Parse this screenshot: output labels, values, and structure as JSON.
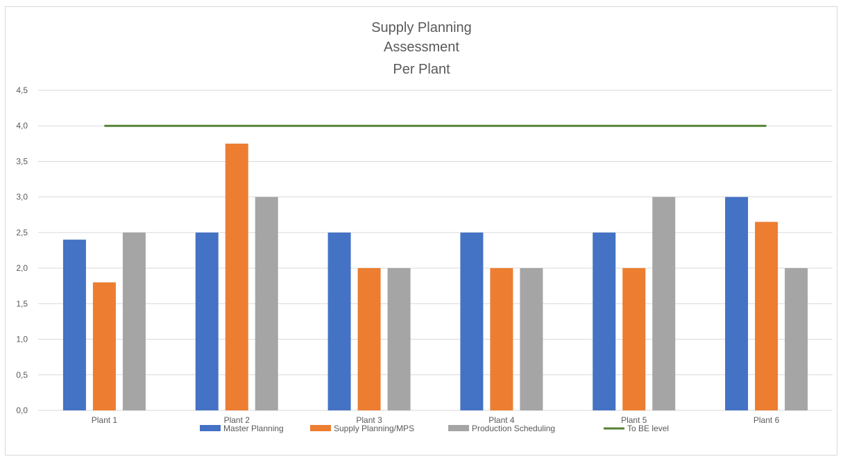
{
  "chart_data": {
    "type": "bar",
    "title": [
      "Supply Planning",
      "Assessment",
      "Per Plant"
    ],
    "categories": [
      "Plant 1",
      "Plant 2",
      "Plant 3",
      "Plant 4",
      "Plant 5",
      "Plant 6"
    ],
    "series": [
      {
        "name": "Master Planning",
        "color": "#4472c4",
        "values": [
          2.4,
          2.5,
          2.5,
          2.5,
          2.5,
          3.0
        ]
      },
      {
        "name": "Supply Planning/MPS",
        "color": "#ed7d31",
        "values": [
          1.8,
          3.75,
          2.0,
          2.0,
          2.0,
          2.65
        ]
      },
      {
        "name": "Production Scheduling",
        "color": "#a5a5a5",
        "values": [
          2.5,
          3.0,
          2.0,
          2.0,
          3.0,
          2.0
        ]
      }
    ],
    "line_series": {
      "name": "To BE level",
      "color": "#548235",
      "value": 4.0
    },
    "yticks": [
      "0,0",
      "0,5",
      "1,0",
      "1,5",
      "2,0",
      "2,5",
      "3,0",
      "3,5",
      "4,0",
      "4,5"
    ],
    "ylim": [
      0,
      4.5
    ],
    "grid": true,
    "legend_position": "bottom",
    "xlabel": "",
    "ylabel": ""
  }
}
